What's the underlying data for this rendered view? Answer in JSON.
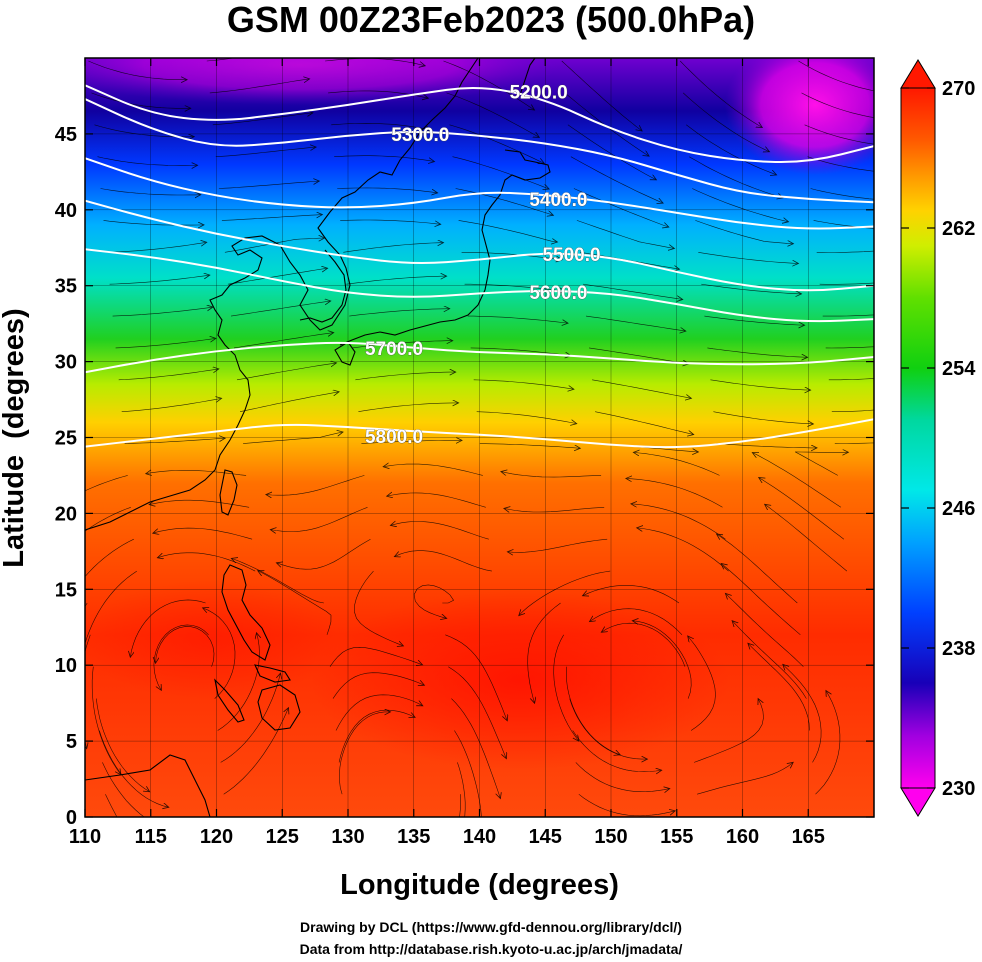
{
  "title": "GSM 00Z23Feb2023 (500.0hPa)",
  "xlabel": "Longitude (degrees)",
  "ylabel": "Latitude  (degrees)",
  "credits": [
    "Drawing by DCL (https://www.gfd-dennou.org/library/dcl/)",
    "Data from http://database.rish.kyoto-u.ac.jp/arch/jmadata/"
  ],
  "map": {
    "lon_range": [
      110,
      170
    ],
    "lat_range": [
      0,
      50
    ],
    "x_ticks": [
      110,
      115,
      120,
      125,
      130,
      135,
      140,
      145,
      150,
      155,
      160,
      165
    ],
    "y_ticks": [
      0,
      5,
      10,
      15,
      20,
      25,
      30,
      35,
      40,
      45
    ],
    "x_tick_labels": [
      "110",
      "115",
      "120",
      "125",
      "130",
      "135",
      "140",
      "145",
      "150",
      "155",
      "160",
      "165"
    ],
    "y_tick_labels": [
      "0",
      "5",
      "10",
      "15",
      "20",
      "25",
      "30",
      "35",
      "40",
      "45"
    ],
    "grid": true
  },
  "contours": [
    {
      "label": "5200.0",
      "label_lon": 144.5,
      "label_lat": 47.8,
      "points": [
        [
          110,
          48.2
        ],
        [
          115,
          46.3
        ],
        [
          120,
          45.8
        ],
        [
          125,
          46.3
        ],
        [
          130,
          46.9
        ],
        [
          135,
          47.6
        ],
        [
          140,
          48.2
        ],
        [
          145,
          47.3
        ],
        [
          150,
          45.3
        ],
        [
          155,
          43.9
        ],
        [
          160,
          43.2
        ],
        [
          165,
          43.1
        ],
        [
          170,
          44.2
        ]
      ]
    },
    {
      "label": "5300.0",
      "label_lon": 135.5,
      "label_lat": 45.0,
      "points": [
        [
          110,
          47.3
        ],
        [
          115,
          45.3
        ],
        [
          120,
          44.1
        ],
        [
          125,
          44.4
        ],
        [
          130,
          44.9
        ],
        [
          135,
          45.2
        ],
        [
          140,
          44.9
        ],
        [
          145,
          44.4
        ],
        [
          150,
          43.6
        ],
        [
          155,
          42.3
        ],
        [
          160,
          41.1
        ],
        [
          165,
          40.7
        ],
        [
          170,
          40.5
        ]
      ]
    },
    {
      "label": "5400.0",
      "label_lon": 146,
      "label_lat": 40.7,
      "points": [
        [
          110,
          43.4
        ],
        [
          115,
          41.9
        ],
        [
          120,
          40.9
        ],
        [
          125,
          40.3
        ],
        [
          130,
          40.1
        ],
        [
          135,
          40.4
        ],
        [
          140,
          41.2
        ],
        [
          145,
          41.0
        ],
        [
          150,
          40.5
        ],
        [
          155,
          39.8
        ],
        [
          160,
          39.1
        ],
        [
          165,
          38.7
        ],
        [
          170,
          38.9
        ]
      ]
    },
    {
      "label": "5500.0",
      "label_lon": 147,
      "label_lat": 37.1,
      "points": [
        [
          110,
          40.6
        ],
        [
          115,
          39.4
        ],
        [
          120,
          38.4
        ],
        [
          125,
          37.6
        ],
        [
          130,
          36.9
        ],
        [
          135,
          36.4
        ],
        [
          140,
          36.7
        ],
        [
          145,
          37.2
        ],
        [
          150,
          36.9
        ],
        [
          155,
          35.9
        ],
        [
          160,
          35.0
        ],
        [
          165,
          34.6
        ],
        [
          170,
          35.0
        ]
      ]
    },
    {
      "label": "5600.0",
      "label_lon": 146,
      "label_lat": 34.6,
      "points": [
        [
          110,
          37.4
        ],
        [
          115,
          36.9
        ],
        [
          120,
          36.2
        ],
        [
          125,
          35.3
        ],
        [
          130,
          34.5
        ],
        [
          135,
          34.2
        ],
        [
          140,
          34.5
        ],
        [
          145,
          34.7
        ],
        [
          150,
          34.5
        ],
        [
          155,
          33.8
        ],
        [
          160,
          33.0
        ],
        [
          165,
          32.6
        ],
        [
          170,
          32.8
        ]
      ]
    },
    {
      "label": "5700.0",
      "label_lon": 133.5,
      "label_lat": 30.9,
      "points": [
        [
          110,
          29.3
        ],
        [
          115,
          30.1
        ],
        [
          120,
          30.7
        ],
        [
          125,
          31.1
        ],
        [
          130,
          31.3
        ],
        [
          135,
          30.9
        ],
        [
          140,
          30.6
        ],
        [
          145,
          30.5
        ],
        [
          150,
          30.2
        ],
        [
          155,
          29.9
        ],
        [
          160,
          29.8
        ],
        [
          165,
          29.9
        ],
        [
          170,
          30.3
        ]
      ]
    },
    {
      "label": "5800.0",
      "label_lon": 133.5,
      "label_lat": 25.1,
      "points": [
        [
          110,
          24.4
        ],
        [
          115,
          24.9
        ],
        [
          120,
          25.4
        ],
        [
          125,
          25.9
        ],
        [
          130,
          25.7
        ],
        [
          135,
          25.4
        ],
        [
          140,
          25.2
        ],
        [
          145,
          24.9
        ],
        [
          150,
          24.5
        ],
        [
          155,
          24.3
        ],
        [
          160,
          24.7
        ],
        [
          165,
          25.4
        ],
        [
          170,
          26.2
        ]
      ]
    }
  ],
  "colorbar": {
    "min": 230,
    "max": 270,
    "ticks": [
      "230",
      "238",
      "246",
      "254",
      "262",
      "270"
    ],
    "stops": [
      {
        "value": 230,
        "color": "#ff00ee"
      },
      {
        "value": 233,
        "color": "#a000e0"
      },
      {
        "value": 236,
        "color": "#1800b8"
      },
      {
        "value": 240,
        "color": "#0040ff"
      },
      {
        "value": 244,
        "color": "#00a0ff"
      },
      {
        "value": 247,
        "color": "#00e8e8"
      },
      {
        "value": 251,
        "color": "#00d8a0"
      },
      {
        "value": 254,
        "color": "#10d010"
      },
      {
        "value": 258,
        "color": "#60e000"
      },
      {
        "value": 261,
        "color": "#d0ee00"
      },
      {
        "value": 263,
        "color": "#ffd200"
      },
      {
        "value": 265,
        "color": "#ff9800"
      },
      {
        "value": 267,
        "color": "#ff5a00"
      },
      {
        "value": 270,
        "color": "#ff1800"
      }
    ]
  },
  "colors": {
    "contour": "#ffffff",
    "coast": "#000000",
    "streamline": "#000000"
  }
}
